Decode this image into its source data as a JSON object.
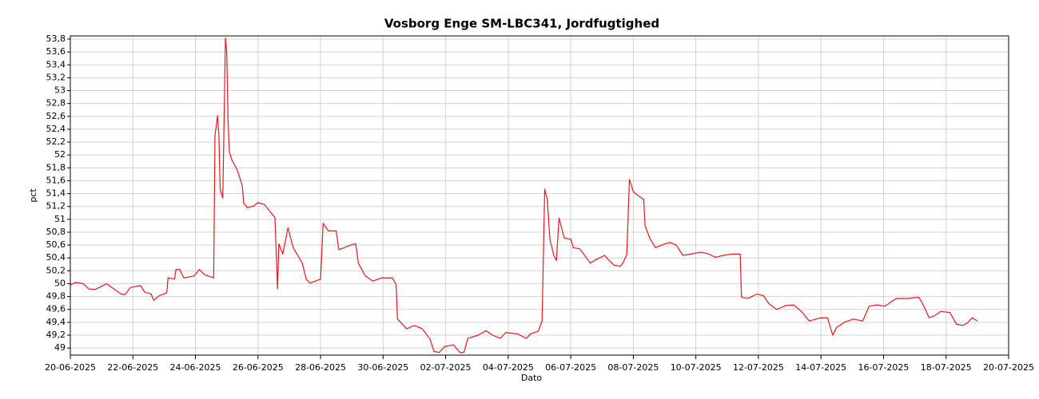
{
  "chart_data": {
    "type": "line",
    "title": "Vosborg Enge SM-LBC341, Jordfugtighed",
    "x_label": "Dato",
    "y_label": "pct",
    "color": "#e8161b",
    "grid": true,
    "x": [
      "2025-06-20T00:00",
      "2025-06-20T04:00",
      "2025-06-20T10:00",
      "2025-06-20T14:00",
      "2025-06-20T19:00",
      "2025-06-21T04:00",
      "2025-06-21T10:00",
      "2025-06-21T15:00",
      "2025-06-21T18:00",
      "2025-06-21T22:00",
      "2025-06-22T06:00",
      "2025-06-22T09:00",
      "2025-06-22T14:00",
      "2025-06-22T16:00",
      "2025-06-22T20:00",
      "2025-06-23T02:00",
      "2025-06-23T03:00",
      "2025-06-23T08:00",
      "2025-06-23T09:00",
      "2025-06-23T12:00",
      "2025-06-23T15:00",
      "2025-06-23T23:00",
      "2025-06-24T03:00",
      "2025-06-24T07:00",
      "2025-06-24T14:00",
      "2025-06-24T15:00",
      "2025-06-24T17:00",
      "2025-06-24T18:00",
      "2025-06-24T19:00",
      "2025-06-24T21:00",
      "2025-06-24T23:00",
      "2025-06-25T00:00",
      "2025-06-25T01:00",
      "2025-06-25T02:00",
      "2025-06-25T04:00",
      "2025-06-25T08:00",
      "2025-06-25T12:00",
      "2025-06-25T13:00",
      "2025-06-25T16:00",
      "2025-06-25T21:00",
      "2025-06-26T00:00",
      "2025-06-26T05:00",
      "2025-06-26T10:00",
      "2025-06-26T13:00",
      "2025-06-26T15:00",
      "2025-06-26T16:00",
      "2025-06-26T19:00",
      "2025-06-26T23:00",
      "2025-06-27T03:00",
      "2025-06-27T10:00",
      "2025-06-27T13:00",
      "2025-06-27T16:00",
      "2025-06-28T00:00",
      "2025-06-28T02:00",
      "2025-06-28T06:00",
      "2025-06-28T12:00",
      "2025-06-28T14:00",
      "2025-06-28T17:00",
      "2025-06-28T23:00",
      "2025-06-29T03:00",
      "2025-06-29T05:00",
      "2025-06-29T10:00",
      "2025-06-29T16:00",
      "2025-06-29T23:00",
      "2025-06-30T07:00",
      "2025-06-30T10:00",
      "2025-06-30T11:00",
      "2025-06-30T18:00",
      "2025-07-01T00:00",
      "2025-07-01T06:00",
      "2025-07-01T12:00",
      "2025-07-01T15:00",
      "2025-07-01T19:00",
      "2025-07-01T23:00",
      "2025-07-02T06:00",
      "2025-07-02T11:00",
      "2025-07-02T14:00",
      "2025-07-02T17:00",
      "2025-07-03T01:00",
      "2025-07-03T07:00",
      "2025-07-03T12:00",
      "2025-07-03T18:00",
      "2025-07-03T22:00",
      "2025-07-04T07:00",
      "2025-07-04T14:00",
      "2025-07-04T17:00",
      "2025-07-04T23:00",
      "2025-07-05T02:00",
      "2025-07-05T04:00",
      "2025-07-05T06:00",
      "2025-07-05T08:00",
      "2025-07-05T11:00",
      "2025-07-05T13:00",
      "2025-07-05T15:00",
      "2025-07-05T19:00",
      "2025-07-06T00:00",
      "2025-07-06T02:00",
      "2025-07-06T07:00",
      "2025-07-06T15:00",
      "2025-07-06T19:00",
      "2025-07-07T02:00",
      "2025-07-07T05:00",
      "2025-07-07T09:00",
      "2025-07-07T14:00",
      "2025-07-07T16:00",
      "2025-07-07T19:00",
      "2025-07-07T21:00",
      "2025-07-08T00:00",
      "2025-07-08T03:00",
      "2025-07-08T08:00",
      "2025-07-08T09:00",
      "2025-07-08T13:00",
      "2025-07-08T17:00",
      "2025-07-08T23:00",
      "2025-07-09T04:00",
      "2025-07-09T09:00",
      "2025-07-09T14:00",
      "2025-07-09T20:00",
      "2025-07-10T04:00",
      "2025-07-10T10:00",
      "2025-07-10T15:00",
      "2025-07-10T21:00",
      "2025-07-11T04:00",
      "2025-07-11T10:00",
      "2025-07-11T11:00",
      "2025-07-11T16:00",
      "2025-07-11T23:00",
      "2025-07-12T04:00",
      "2025-07-12T08:00",
      "2025-07-12T14:00",
      "2025-07-12T21:00",
      "2025-07-13T03:00",
      "2025-07-13T09:00",
      "2025-07-13T15:00",
      "2025-07-14T00:00",
      "2025-07-14T05:00",
      "2025-07-14T09:00",
      "2025-07-14T12:00",
      "2025-07-14T18:00",
      "2025-07-15T01:00",
      "2025-07-15T08:00",
      "2025-07-15T13:00",
      "2025-07-15T19:00",
      "2025-07-16T01:00",
      "2025-07-16T06:00",
      "2025-07-16T10:00",
      "2025-07-16T19:00",
      "2025-07-17T03:00",
      "2025-07-17T06:00",
      "2025-07-17T11:00",
      "2025-07-17T15:00",
      "2025-07-17T20:00",
      "2025-07-18T03:00",
      "2025-07-18T08:00",
      "2025-07-18T13:00",
      "2025-07-18T17:00",
      "2025-07-18T20:00",
      "2025-07-19T00:00"
    ],
    "values": [
      49.98,
      50.02,
      50.0,
      49.92,
      49.91,
      50.0,
      49.91,
      49.84,
      49.83,
      49.94,
      49.97,
      49.87,
      49.84,
      49.74,
      49.81,
      49.86,
      50.09,
      50.07,
      50.22,
      50.22,
      50.09,
      50.12,
      50.22,
      50.14,
      50.09,
      52.3,
      52.61,
      52.3,
      51.46,
      51.33,
      53.82,
      53.6,
      52.55,
      52.05,
      51.92,
      51.77,
      51.52,
      51.25,
      51.18,
      51.21,
      51.26,
      51.23,
      51.1,
      51.03,
      49.92,
      50.62,
      50.46,
      50.87,
      50.56,
      50.32,
      50.07,
      50.01,
      50.07,
      50.94,
      50.82,
      50.82,
      50.53,
      50.55,
      50.6,
      50.62,
      50.32,
      50.13,
      50.04,
      50.09,
      50.09,
      49.99,
      49.45,
      49.3,
      49.35,
      49.3,
      49.14,
      48.95,
      48.93,
      49.02,
      49.05,
      48.93,
      48.93,
      49.15,
      49.2,
      49.27,
      49.2,
      49.15,
      49.24,
      49.22,
      49.15,
      49.22,
      49.26,
      49.42,
      51.47,
      51.31,
      50.69,
      50.44,
      50.36,
      51.02,
      50.71,
      50.69,
      50.56,
      50.54,
      50.32,
      50.37,
      50.44,
      50.37,
      50.29,
      50.27,
      50.32,
      50.45,
      51.62,
      51.43,
      51.38,
      51.31,
      50.9,
      50.69,
      50.56,
      50.61,
      50.64,
      50.6,
      50.44,
      50.46,
      50.49,
      50.46,
      50.41,
      50.44,
      50.46,
      50.46,
      49.79,
      49.77,
      49.84,
      49.81,
      49.69,
      49.6,
      49.66,
      49.67,
      49.57,
      49.42,
      49.47,
      49.47,
      49.2,
      49.32,
      49.4,
      49.45,
      49.42,
      49.65,
      49.67,
      49.65,
      49.72,
      49.77,
      49.77,
      49.79,
      49.69,
      49.47,
      49.5,
      49.57,
      49.55,
      49.37,
      49.35,
      49.4,
      49.47,
      49.42
    ],
    "xlim": [
      "2025-06-20",
      "2025-07-20"
    ],
    "xticks": [
      {
        "value": "2025-06-20",
        "label": "20-06-2025"
      },
      {
        "value": "2025-06-22",
        "label": "22-06-2025"
      },
      {
        "value": "2025-06-24",
        "label": "24-06-2025"
      },
      {
        "value": "2025-06-26",
        "label": "26-06-2025"
      },
      {
        "value": "2025-06-28",
        "label": "28-06-2025"
      },
      {
        "value": "2025-06-30",
        "label": "30-06-2025"
      },
      {
        "value": "2025-07-02",
        "label": "02-07-2025"
      },
      {
        "value": "2025-07-04",
        "label": "04-07-2025"
      },
      {
        "value": "2025-07-06",
        "label": "06-07-2025"
      },
      {
        "value": "2025-07-08",
        "label": "08-07-2025"
      },
      {
        "value": "2025-07-10",
        "label": "10-07-2025"
      },
      {
        "value": "2025-07-12",
        "label": "12-07-2025"
      },
      {
        "value": "2025-07-14",
        "label": "14-07-2025"
      },
      {
        "value": "2025-07-16",
        "label": "16-07-2025"
      },
      {
        "value": "2025-07-18",
        "label": "18-07-2025"
      },
      {
        "value": "2025-07-20",
        "label": "20-07-2025"
      }
    ],
    "ylim": [
      48.89,
      53.85
    ],
    "yticks": [
      49,
      {
        "value": 49.2,
        "label": "49,2"
      },
      {
        "value": 49.4,
        "label": "49,4"
      },
      {
        "value": 49.6,
        "label": "49,6"
      },
      {
        "value": 49.8,
        "label": "49,8"
      },
      50,
      {
        "value": 50.2,
        "label": "50,2"
      },
      {
        "value": 50.4,
        "label": "50,4"
      },
      {
        "value": 50.6,
        "label": "50,6"
      },
      {
        "value": 50.8,
        "label": "50,8"
      },
      51,
      {
        "value": 51.2,
        "label": "51,2"
      },
      {
        "value": 51.4,
        "label": "51,4"
      },
      {
        "value": 51.6,
        "label": "51,6"
      },
      {
        "value": 51.8,
        "label": "51,8"
      },
      52,
      {
        "value": 52.2,
        "label": "52,2"
      },
      {
        "value": 52.4,
        "label": "52,4"
      },
      {
        "value": 52.6,
        "label": "52,6"
      },
      {
        "value": 52.8,
        "label": "52,8"
      },
      53,
      {
        "value": 53.2,
        "label": "53,2"
      },
      {
        "value": 53.4,
        "label": "53,4"
      },
      {
        "value": 53.6,
        "label": "53,6"
      },
      {
        "value": 53.8,
        "label": "53,8"
      }
    ]
  }
}
